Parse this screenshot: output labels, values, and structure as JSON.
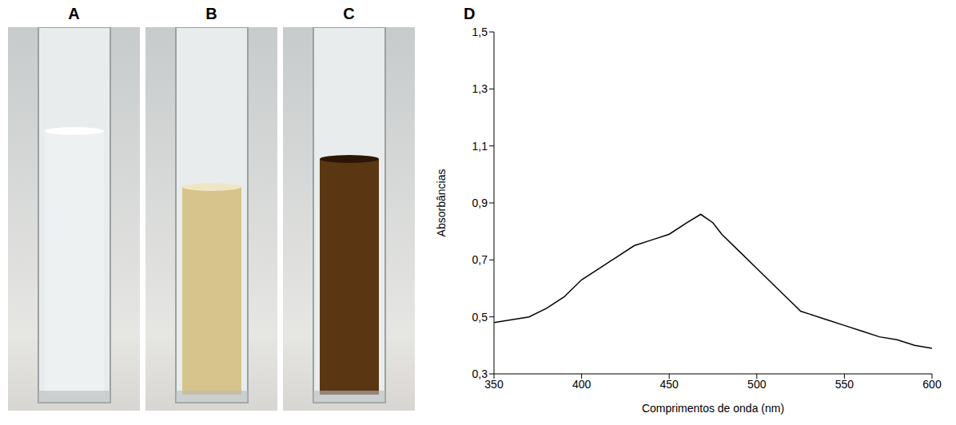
{
  "panels": [
    "A",
    "B",
    "C"
  ],
  "chart_data": {
    "type": "line",
    "title": "D",
    "x_label": "Comprimentos de onda (nm)",
    "y_label": "Absorbâncias",
    "color": "#000000",
    "x": [
      350,
      360,
      370,
      380,
      390,
      400,
      410,
      420,
      430,
      440,
      450,
      460,
      468,
      475,
      480,
      490,
      500,
      510,
      520,
      525,
      530,
      540,
      550,
      560,
      570,
      580,
      590,
      600
    ],
    "values": [
      0.48,
      0.49,
      0.5,
      0.53,
      0.57,
      0.63,
      0.67,
      0.71,
      0.75,
      0.77,
      0.79,
      0.83,
      0.86,
      0.83,
      0.79,
      0.73,
      0.67,
      0.61,
      0.55,
      0.52,
      0.51,
      0.49,
      0.47,
      0.45,
      0.43,
      0.42,
      0.4,
      0.39
    ],
    "xlim": [
      350,
      600
    ],
    "ylim": [
      0.3,
      1.5
    ],
    "xticks": [
      350,
      400,
      450,
      500,
      550,
      600
    ],
    "yticks": [
      {
        "value": 0.3,
        "label": "0,3"
      },
      {
        "value": 0.5,
        "label": "0,5"
      },
      {
        "value": 0.7,
        "label": "0,7"
      },
      {
        "value": 0.9,
        "label": "0,9"
      },
      {
        "value": 1.1,
        "label": "1,1"
      },
      {
        "value": 1.3,
        "label": "1,3"
      },
      {
        "value": 1.5,
        "label": "1,5"
      }
    ]
  }
}
